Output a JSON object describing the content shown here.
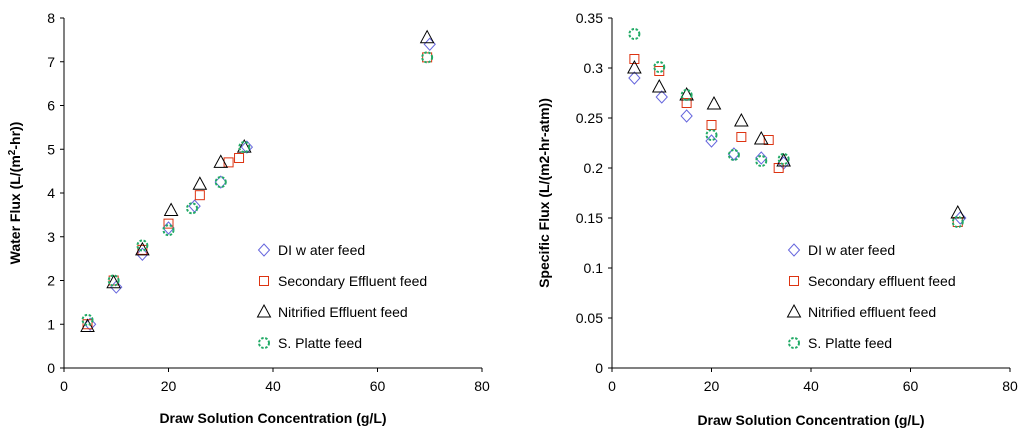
{
  "colors": {
    "DI": "#6666dd",
    "Secondary": "#dd3311",
    "Nitrified": "#000000",
    "SPlatte": "#22aa66"
  },
  "chart_data": [
    {
      "type": "scatter",
      "title": "",
      "xlabel": "Draw Solution Concentration (g/L)",
      "ylabel": "Water Flux (L/(m2-hr))",
      "ylabel_parts": [
        "Water Flux (L/(m",
        "2",
        "-hr))"
      ],
      "xlim": [
        0,
        80
      ],
      "ylim": [
        0,
        8
      ],
      "xticks": [
        0,
        20,
        40,
        60,
        80
      ],
      "yticks": [
        0,
        1,
        2,
        3,
        4,
        5,
        6,
        7,
        8
      ],
      "ytick_decimals": 0,
      "grid": false,
      "legend_placement": "lower-right",
      "series": [
        {
          "name": "DI w ater feed",
          "marker": "diamond",
          "color_key": "DI",
          "points": [
            [
              5,
              1.0
            ],
            [
              10,
              1.85
            ],
            [
              15,
              2.6
            ],
            [
              20,
              3.2
            ],
            [
              25,
              3.7
            ],
            [
              30,
              4.25
            ],
            [
              35,
              5.05
            ],
            [
              70,
              7.4
            ]
          ]
        },
        {
          "name": "Secondary Effluent feed",
          "marker": "square",
          "color_key": "Secondary",
          "points": [
            [
              4.5,
              1.0
            ],
            [
              9.5,
              2.0
            ],
            [
              15,
              2.7
            ],
            [
              20,
              3.3
            ],
            [
              26,
              3.95
            ],
            [
              31.5,
              4.7
            ],
            [
              33.5,
              4.8
            ],
            [
              69.5,
              7.1
            ]
          ]
        },
        {
          "name": "Nitrified Effluent feed",
          "marker": "triangle",
          "color_key": "Nitrified",
          "points": [
            [
              4.5,
              0.95
            ],
            [
              9.5,
              1.95
            ],
            [
              15,
              2.7
            ],
            [
              20.5,
              3.6
            ],
            [
              26,
              4.2
            ],
            [
              30,
              4.7
            ],
            [
              34.5,
              5.05
            ],
            [
              69.5,
              7.55
            ]
          ]
        },
        {
          "name": "S. Platte feed",
          "marker": "circle",
          "color_key": "SPlatte",
          "points": [
            [
              4.5,
              1.1
            ],
            [
              9.5,
              2.0
            ],
            [
              15,
              2.8
            ],
            [
              20,
              3.15
            ],
            [
              24.5,
              3.65
            ],
            [
              30,
              4.25
            ],
            [
              34.5,
              5.05
            ],
            [
              69.5,
              7.1
            ]
          ]
        }
      ]
    },
    {
      "type": "scatter",
      "title": "",
      "xlabel": "Draw Solution Concentration (g/L)",
      "ylabel": "Specific Flux  (L/(m2-hr-atm))",
      "xlim": [
        0,
        80
      ],
      "ylim": [
        0,
        0.35
      ],
      "xticks": [
        0,
        20,
        40,
        60,
        80
      ],
      "yticks": [
        0,
        0.05,
        0.1,
        0.15,
        0.2,
        0.25,
        0.3,
        0.35
      ],
      "ytick_labels": [
        "0",
        "0.05",
        "0.1",
        "0.15",
        "0.2",
        "0.25",
        "0.3",
        "0.35"
      ],
      "grid": false,
      "legend_placement": "lower-right",
      "series": [
        {
          "name": "DI w ater feed",
          "marker": "diamond",
          "color_key": "DI",
          "points": [
            [
              4.5,
              0.29
            ],
            [
              10,
              0.271
            ],
            [
              15,
              0.252
            ],
            [
              20,
              0.227
            ],
            [
              24.5,
              0.214
            ],
            [
              30,
              0.21
            ],
            [
              34.5,
              0.205
            ],
            [
              70,
              0.15
            ]
          ]
        },
        {
          "name": "Secondary effluent feed",
          "marker": "square",
          "color_key": "Secondary",
          "points": [
            [
              4.5,
              0.309
            ],
            [
              9.5,
              0.297
            ],
            [
              15,
              0.265
            ],
            [
              20,
              0.243
            ],
            [
              26,
              0.231
            ],
            [
              31.5,
              0.228
            ],
            [
              33.5,
              0.2
            ],
            [
              69.5,
              0.146
            ]
          ]
        },
        {
          "name": "Nitrified effluent feed",
          "marker": "triangle",
          "color_key": "Nitrified",
          "points": [
            [
              4.5,
              0.3
            ],
            [
              9.5,
              0.281
            ],
            [
              15,
              0.273
            ],
            [
              20.5,
              0.264
            ],
            [
              26,
              0.247
            ],
            [
              30,
              0.229
            ],
            [
              34.5,
              0.207
            ],
            [
              69.5,
              0.155
            ]
          ]
        },
        {
          "name": "S. Platte feed",
          "marker": "circle",
          "color_key": "SPlatte",
          "points": [
            [
              4.5,
              0.334
            ],
            [
              9.5,
              0.301
            ],
            [
              15,
              0.273
            ],
            [
              20,
              0.233
            ],
            [
              24.5,
              0.213
            ],
            [
              30,
              0.207
            ],
            [
              34.5,
              0.209
            ],
            [
              69.5,
              0.146
            ]
          ]
        }
      ]
    }
  ]
}
